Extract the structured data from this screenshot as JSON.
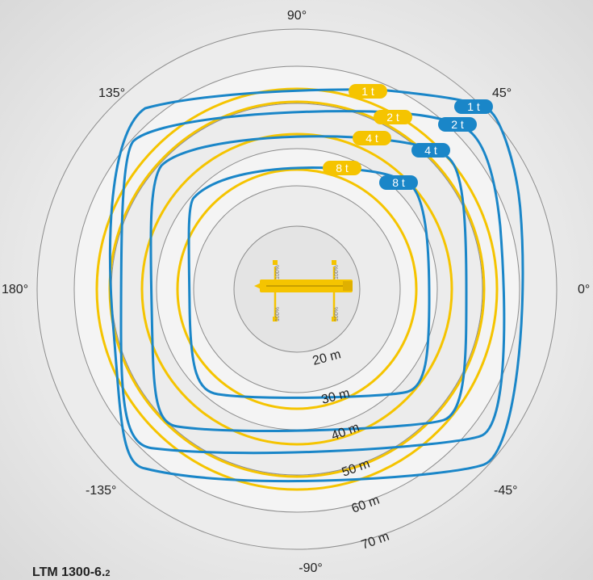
{
  "angle_labels": [
    "90°",
    "45°",
    "0°",
    "-45°",
    "-90°",
    "-135°",
    "180°",
    "135°"
  ],
  "radius_labels": [
    "20 m",
    "30 m",
    "40 m",
    "50 m",
    "60 m",
    "70 m"
  ],
  "support_percent": [
    "100%",
    "100%",
    "100%",
    "100%"
  ],
  "load_curves_yellow": [
    {
      "label": "1 t"
    },
    {
      "label": "2 t"
    },
    {
      "label": "4 t"
    },
    {
      "label": "8 t"
    }
  ],
  "load_curves_blue": [
    {
      "label": "1 t"
    },
    {
      "label": "2 t"
    },
    {
      "label": "4 t"
    },
    {
      "label": "8 t"
    }
  ],
  "colors": {
    "yellow": "#f5c400",
    "blue": "#1a86c8",
    "ring_line": "#8c8c8c"
  },
  "model": {
    "name": "LTM 1300-6.",
    "sub": "2"
  }
}
